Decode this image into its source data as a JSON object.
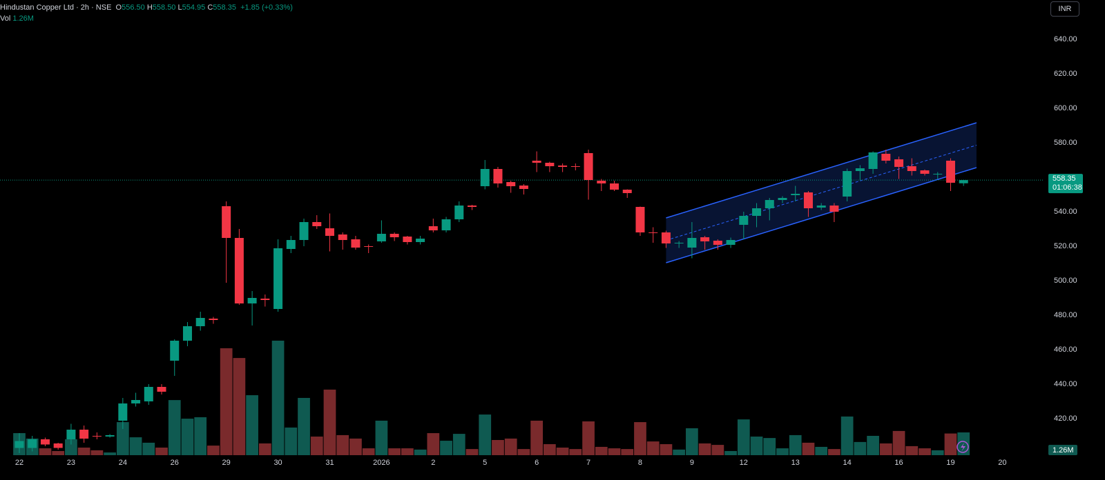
{
  "chart_data": {
    "type": "candlestick",
    "legend": {
      "title": "Hindustan Copper Ltd · 2h · NSE",
      "items": [
        {
          "key": "O",
          "value": "556.50"
        },
        {
          "key": "H",
          "value": "558.50"
        },
        {
          "key": "L",
          "value": "554.95"
        },
        {
          "key": "C",
          "value": "558.35"
        }
      ],
      "change": "+1.85 (+0.33%)",
      "vol_key": "Vol",
      "vol_value": "1.26M"
    },
    "currency": "INR",
    "last_price_label": "558.35",
    "countdown": "01:06:38",
    "volume_label": "1.26M",
    "up_color": "#089981",
    "down_color": "#f23645",
    "up_volume_color": "#0f5a51",
    "down_volume_color": "#7a2a2c",
    "open": [
      403,
      403,
      408,
      405.6,
      408,
      413.6,
      410,
      409.6,
      418.8,
      428.8,
      430,
      438.4,
      453.6,
      465.2,
      473.6,
      478,
      543.2,
      524.8,
      486.8,
      489.6,
      483.6,
      518.4,
      523.6,
      534,
      530.4,
      526.8,
      524,
      520,
      522.8,
      527.2,
      525.6,
      522.4,
      531.6,
      529.2,
      535.6,
      543.6,
      554.8,
      564.8,
      557.2,
      555.2,
      569.6,
      568.4,
      566.8,
      566.4,
      574,
      558,
      556.4,
      552.8,
      542.8,
      528,
      528,
      521.6,
      519.2,
      525.2,
      523.2,
      520.8,
      532.4,
      537.6,
      542,
      546.8,
      549.6,
      551.2,
      542.4,
      543.6,
      548.8,
      563.6,
      564.8,
      573.6,
      570.4,
      566.4,
      564,
      561.6,
      569.6,
      556.5
    ],
    "high": [
      411.6,
      410,
      409,
      406,
      417,
      416,
      412,
      411,
      432,
      435,
      440,
      440,
      466,
      476,
      482,
      479,
      546,
      530,
      494,
      492,
      524,
      526,
      536,
      538,
      539,
      528,
      526,
      521,
      535,
      528,
      526,
      526,
      536,
      537,
      546,
      544,
      570,
      566,
      558,
      556,
      575,
      569,
      568,
      568,
      576,
      559,
      558,
      553,
      543,
      531,
      529,
      523,
      534,
      526,
      524,
      525,
      540,
      545,
      548,
      549,
      555,
      552,
      545,
      545,
      565,
      567,
      575,
      576,
      572,
      571,
      564.5,
      563,
      571,
      558.5
    ],
    "low": [
      400,
      401,
      404,
      402,
      405,
      406,
      408,
      409,
      414,
      427,
      428,
      434,
      444.8,
      462,
      471,
      475,
      498.8,
      486,
      474,
      485,
      482,
      516,
      520,
      530,
      517,
      518,
      518,
      516,
      522,
      523,
      521,
      521,
      528,
      528,
      534,
      541,
      553,
      554,
      551,
      550,
      563,
      563,
      563,
      564,
      547,
      552,
      552,
      548,
      526,
      522,
      519,
      519,
      513,
      518,
      518,
      519,
      524,
      531,
      535,
      545,
      546,
      537,
      541,
      534,
      546,
      558,
      562,
      568,
      559,
      561,
      561,
      559,
      552,
      554.95
    ],
    "close": [
      407,
      408,
      405,
      403,
      413.6,
      408.4,
      409.6,
      410.4,
      428.8,
      430.8,
      438.4,
      435.6,
      465.2,
      473.6,
      478.4,
      477.2,
      524.8,
      486.8,
      490,
      488.8,
      518.8,
      523.6,
      534,
      531.6,
      526,
      523.6,
      519.2,
      519.6,
      527.2,
      525.2,
      522.4,
      524.4,
      529.2,
      535.6,
      543.6,
      542.8,
      564.8,
      556.4,
      554.8,
      553.2,
      568.4,
      566.4,
      566,
      566,
      558.4,
      556.4,
      552.8,
      550.8,
      528,
      527.6,
      521.6,
      522,
      524.8,
      522.8,
      520.8,
      523.6,
      537.6,
      542,
      546.8,
      548,
      550.4,
      542,
      543.6,
      540,
      563.6,
      565.2,
      574.4,
      569.6,
      566,
      563.6,
      562,
      562,
      556.8,
      558.35
    ],
    "volume": [
      1.22,
      0.92,
      0.38,
      0.23,
      0.88,
      0.42,
      0.27,
      0.15,
      1.83,
      0.99,
      0.69,
      0.42,
      3.05,
      2.02,
      2.1,
      0.53,
      5.92,
      5.38,
      3.32,
      0.65,
      6.34,
      1.53,
      3.17,
      1.03,
      3.63,
      1.11,
      0.92,
      0.38,
      1.91,
      0.38,
      0.38,
      0.31,
      1.22,
      0.8,
      1.18,
      0.34,
      2.25,
      0.84,
      0.92,
      0.34,
      1.91,
      0.61,
      0.42,
      0.34,
      1.87,
      0.46,
      0.38,
      0.34,
      1.83,
      0.76,
      0.61,
      0.31,
      1.49,
      0.65,
      0.57,
      0.23,
      1.98,
      1.03,
      0.95,
      0.38,
      1.11,
      0.69,
      0.46,
      0.34,
      2.14,
      0.73,
      1.07,
      0.65,
      1.34,
      0.5,
      0.38,
      0.27,
      1.2,
      1.26
    ],
    "xlim": [
      -1.495,
      79.13
    ],
    "xticks": [
      {
        "value": 0,
        "label": "22"
      },
      {
        "value": 4,
        "label": "23"
      },
      {
        "value": 8,
        "label": "24"
      },
      {
        "value": 12,
        "label": "26"
      },
      {
        "value": 16,
        "label": "29"
      },
      {
        "value": 20,
        "label": "30"
      },
      {
        "value": 24,
        "label": "31"
      },
      {
        "value": 28,
        "label": "2026"
      },
      {
        "value": 32,
        "label": "2"
      },
      {
        "value": 36,
        "label": "5"
      },
      {
        "value": 40,
        "label": "6"
      },
      {
        "value": 44,
        "label": "7"
      },
      {
        "value": 48,
        "label": "8"
      },
      {
        "value": 52,
        "label": "9"
      },
      {
        "value": 56,
        "label": "12"
      },
      {
        "value": 60,
        "label": "13"
      },
      {
        "value": 64,
        "label": "14"
      },
      {
        "value": 68,
        "label": "16"
      },
      {
        "value": 72,
        "label": "19"
      },
      {
        "value": 76,
        "label": "20"
      }
    ],
    "ylim": [
      398.8,
      662.8
    ],
    "yticks": [
      {
        "value": 420,
        "label": "420.00"
      },
      {
        "value": 440,
        "label": "440.00"
      },
      {
        "value": 460,
        "label": "460.00"
      },
      {
        "value": 480,
        "label": "480.00"
      },
      {
        "value": 500,
        "label": "500.00"
      },
      {
        "value": 520,
        "label": "520.00"
      },
      {
        "value": 540,
        "label": "540.00"
      },
      {
        "value": 580,
        "label": "580.00"
      },
      {
        "value": 600,
        "label": "600.00"
      },
      {
        "value": 620,
        "label": "620.00"
      },
      {
        "value": 640,
        "label": "640.00"
      }
    ],
    "vol_lim": [
      0,
      25.2
    ],
    "channel": {
      "x": [
        50,
        74
      ],
      "upper": [
        536.4,
        591.6
      ],
      "lower": [
        510.4,
        565.6
      ],
      "color": "#2962ff"
    }
  }
}
